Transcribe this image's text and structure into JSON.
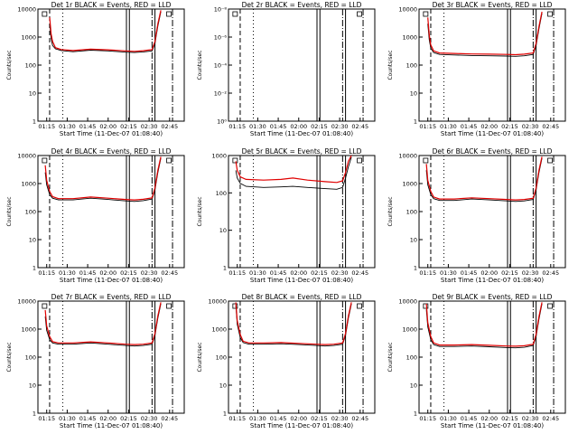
{
  "chart_data": [
    {
      "type": "line",
      "title": "Det 1r BLACK = Events, RED = LLD",
      "xlabel": "Start Time (11-Dec-07 01:08:40)",
      "ylabel": "Counts/sec",
      "xticks": [
        "01:15",
        "01:30",
        "01:45",
        "02:00",
        "02:15",
        "02:30",
        "02:45"
      ],
      "yscale": "log",
      "ylim": [
        1,
        10000
      ],
      "yticks": [
        "1",
        "10",
        "100",
        "1000",
        "10000"
      ],
      "series": [
        {
          "color": "#000000",
          "x": [
            8,
            9,
            10,
            12,
            16,
            24,
            36,
            48,
            60,
            66,
            72,
            78,
            80,
            82,
            84
          ],
          "y": [
            3000,
            900,
            500,
            380,
            330,
            300,
            340,
            320,
            290,
            280,
            295,
            320,
            600,
            2500,
            8000
          ]
        },
        {
          "color": "#e00000",
          "x": [
            8,
            9,
            10,
            12,
            16,
            24,
            36,
            48,
            60,
            66,
            72,
            78,
            80,
            82,
            84
          ],
          "y": [
            5000,
            1300,
            700,
            420,
            360,
            330,
            370,
            350,
            320,
            310,
            325,
            360,
            700,
            3000,
            9000
          ]
        }
      ]
    },
    {
      "type": "line",
      "title": "Det 2r BLACK = Events, RED = LLD",
      "xlabel": "Start Time (11-Dec-07 01:08:40)",
      "ylabel": "Counts/sec",
      "xticks": [
        "01:15",
        "01:30",
        "01:45",
        "02:00",
        "02:15",
        "02:30",
        "02:45"
      ],
      "yscale": "log",
      "ylim": [
        1,
        1e-09
      ],
      "yticks": [
        "10⁰",
        "10⁻²",
        "10⁻⁴",
        "10⁻⁶",
        "10⁻⁸"
      ],
      "series": []
    },
    {
      "type": "line",
      "title": "Det 3r BLACK = Events, RED = LLD",
      "xlabel": "Start Time (11-Dec-07 01:08:40)",
      "ylabel": "Counts/sec",
      "xticks": [
        "01:15",
        "01:30",
        "01:45",
        "02:00",
        "02:15",
        "02:30",
        "02:45"
      ],
      "yscale": "log",
      "ylim": [
        1,
        10000
      ],
      "yticks": [
        "1",
        "10",
        "100",
        "1000",
        "10000"
      ],
      "series": [
        {
          "color": "#000000",
          "x": [
            6,
            7,
            8,
            10,
            14,
            24,
            36,
            48,
            60,
            66,
            72,
            78,
            80,
            82,
            84
          ],
          "y": [
            3000,
            800,
            400,
            280,
            240,
            230,
            220,
            215,
            210,
            205,
            215,
            240,
            500,
            2000,
            7000
          ]
        },
        {
          "color": "#e00000",
          "x": [
            6,
            7,
            8,
            10,
            14,
            24,
            36,
            48,
            60,
            66,
            72,
            78,
            80,
            82,
            84
          ],
          "y": [
            5000,
            1200,
            520,
            320,
            270,
            260,
            250,
            245,
            240,
            235,
            245,
            270,
            600,
            2400,
            8000
          ]
        }
      ]
    },
    {
      "type": "line",
      "title": "Det 4r BLACK = Events, RED = LLD",
      "xlabel": "Start Time (11-Dec-07 01:08:40)",
      "ylabel": "Counts/sec",
      "xticks": [
        "01:15",
        "01:30",
        "01:45",
        "02:00",
        "02:15",
        "02:30",
        "02:45"
      ],
      "yscale": "log",
      "ylim": [
        1,
        10000
      ],
      "yticks": [
        "1",
        "10",
        "100",
        "1000",
        "10000"
      ],
      "series": [
        {
          "color": "#000000",
          "x": [
            5,
            6,
            8,
            10,
            14,
            24,
            36,
            48,
            60,
            66,
            72,
            78,
            80,
            82,
            84
          ],
          "y": [
            2500,
            900,
            400,
            300,
            260,
            260,
            300,
            270,
            240,
            230,
            245,
            280,
            600,
            2500,
            8000
          ]
        },
        {
          "color": "#e00000",
          "x": [
            5,
            6,
            8,
            10,
            14,
            24,
            36,
            48,
            60,
            66,
            72,
            78,
            80,
            82,
            84
          ],
          "y": [
            4500,
            1300,
            520,
            340,
            290,
            290,
            330,
            300,
            270,
            260,
            275,
            310,
            700,
            3000,
            9000
          ]
        }
      ]
    },
    {
      "type": "line",
      "title": "Det 5r BLACK = Events, RED = LLD",
      "xlabel": "Start Time (11-Dec-07 01:08:40)",
      "ylabel": "Counts/sec",
      "xticks": [
        "01:15",
        "01:30",
        "01:45",
        "02:00",
        "02:15",
        "02:30",
        "02:45"
      ],
      "yscale": "log",
      "ylim": [
        1,
        1000
      ],
      "yticks": [
        "1",
        "10",
        "100",
        "1000"
      ],
      "series": [
        {
          "color": "#000000",
          "x": [
            5,
            6,
            8,
            12,
            24,
            36,
            44,
            54,
            66,
            74,
            78,
            80,
            82,
            84
          ],
          "y": [
            400,
            250,
            180,
            150,
            140,
            145,
            150,
            140,
            130,
            125,
            140,
            250,
            500,
            900
          ]
        },
        {
          "color": "#e00000",
          "x": [
            5,
            6,
            8,
            12,
            24,
            36,
            44,
            54,
            66,
            74,
            78,
            80,
            82,
            84
          ],
          "y": [
            700,
            400,
            270,
            230,
            220,
            230,
            250,
            220,
            200,
            190,
            210,
            350,
            700,
            1000
          ]
        }
      ]
    },
    {
      "type": "line",
      "title": "Det 6r BLACK = Events, RED = LLD",
      "xlabel": "Start Time (11-Dec-07 01:08:40)",
      "ylabel": "Counts/sec",
      "xticks": [
        "01:15",
        "01:30",
        "01:45",
        "02:00",
        "02:15",
        "02:30",
        "02:45"
      ],
      "yscale": "log",
      "ylim": [
        1,
        10000
      ],
      "yticks": [
        "1",
        "10",
        "100",
        "1000",
        "10000"
      ],
      "series": [
        {
          "color": "#000000",
          "x": [
            5,
            6,
            8,
            10,
            14,
            24,
            36,
            48,
            60,
            66,
            72,
            78,
            80,
            82,
            84
          ],
          "y": [
            3000,
            900,
            400,
            290,
            250,
            250,
            280,
            260,
            240,
            230,
            240,
            270,
            600,
            2500,
            8000
          ]
        },
        {
          "color": "#e00000",
          "x": [
            5,
            6,
            8,
            10,
            14,
            24,
            36,
            48,
            60,
            66,
            72,
            78,
            80,
            82,
            84
          ],
          "y": [
            5000,
            1300,
            520,
            330,
            280,
            280,
            310,
            290,
            270,
            260,
            270,
            300,
            700,
            3000,
            9000
          ]
        }
      ]
    },
    {
      "type": "line",
      "title": "Det 7r BLACK = Events, RED = LLD",
      "xlabel": "Start Time (11-Dec-07 01:08:40)",
      "ylabel": "Counts/sec",
      "xticks": [
        "01:15",
        "01:30",
        "01:45",
        "02:00",
        "02:15",
        "02:30",
        "02:45"
      ],
      "yscale": "log",
      "ylim": [
        1,
        10000
      ],
      "yticks": [
        "1",
        "10",
        "100",
        "1000",
        "10000"
      ],
      "series": [
        {
          "color": "#000000",
          "x": [
            5,
            6,
            8,
            10,
            14,
            24,
            36,
            48,
            60,
            66,
            72,
            78,
            80,
            82,
            84
          ],
          "y": [
            2800,
            900,
            420,
            320,
            290,
            290,
            320,
            290,
            260,
            250,
            260,
            290,
            600,
            2500,
            8000
          ]
        },
        {
          "color": "#e00000",
          "x": [
            5,
            6,
            8,
            10,
            14,
            24,
            36,
            48,
            60,
            66,
            72,
            78,
            80,
            82,
            84
          ],
          "y": [
            4800,
            1300,
            540,
            360,
            320,
            320,
            350,
            320,
            290,
            280,
            290,
            320,
            700,
            3000,
            9000
          ]
        }
      ]
    },
    {
      "type": "line",
      "title": "Det 8r BLACK = Events, RED = LLD",
      "xlabel": "Start Time (11-Dec-07 01:08:40)",
      "ylabel": "Counts/sec",
      "xticks": [
        "01:15",
        "01:30",
        "01:45",
        "02:00",
        "02:15",
        "02:30",
        "02:45"
      ],
      "yscale": "log",
      "ylim": [
        1,
        10000
      ],
      "yticks": [
        "1",
        "10",
        "100",
        "1000",
        "10000"
      ],
      "series": [
        {
          "color": "#000000",
          "x": [
            5,
            6,
            8,
            10,
            14,
            24,
            36,
            48,
            60,
            66,
            72,
            78,
            80,
            82,
            84
          ],
          "y": [
            7000,
            1500,
            500,
            330,
            290,
            290,
            300,
            280,
            260,
            250,
            260,
            290,
            600,
            2500,
            8000
          ]
        },
        {
          "color": "#e00000",
          "x": [
            5,
            6,
            8,
            10,
            14,
            24,
            36,
            48,
            60,
            66,
            72,
            78,
            80,
            82,
            84
          ],
          "y": [
            9000,
            2000,
            640,
            370,
            320,
            320,
            330,
            310,
            290,
            280,
            290,
            320,
            700,
            3000,
            9000
          ]
        }
      ]
    },
    {
      "type": "line",
      "title": "Det 9r BLACK = Events, RED = LLD",
      "xlabel": "Start Time (11-Dec-07 01:08:40)",
      "ylabel": "Counts/sec",
      "xticks": [
        "01:15",
        "01:30",
        "01:45",
        "02:00",
        "02:15",
        "02:30",
        "02:45"
      ],
      "yscale": "log",
      "ylim": [
        1,
        10000
      ],
      "yticks": [
        "1",
        "10",
        "100",
        "1000",
        "10000"
      ],
      "series": [
        {
          "color": "#000000",
          "x": [
            5,
            6,
            8,
            10,
            14,
            24,
            36,
            48,
            60,
            66,
            72,
            78,
            80,
            82,
            84
          ],
          "y": [
            5000,
            1200,
            420,
            280,
            240,
            240,
            250,
            235,
            220,
            215,
            225,
            260,
            550,
            2300,
            8000
          ]
        },
        {
          "color": "#e00000",
          "x": [
            5,
            6,
            8,
            10,
            14,
            24,
            36,
            48,
            60,
            66,
            72,
            78,
            80,
            82,
            84
          ],
          "y": [
            8000,
            1700,
            540,
            320,
            270,
            270,
            280,
            265,
            250,
            245,
            255,
            290,
            650,
            2800,
            9000
          ]
        }
      ]
    }
  ]
}
